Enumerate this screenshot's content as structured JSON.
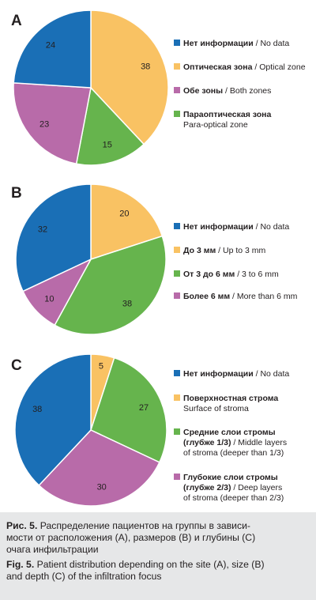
{
  "colors": {
    "blue": "#1a6fb6",
    "yellow": "#f9c263",
    "purple": "#b86ba9",
    "green": "#66b44d"
  },
  "chart_data": [
    {
      "type": "pie",
      "panel": "A",
      "slices": [
        {
          "label_ru": "Нет информации",
          "label_en": "No data",
          "value": 24,
          "color": "#1a6fb6"
        },
        {
          "label_ru": "Оптическая зона",
          "label_en": "Optical zone",
          "value": 38,
          "color": "#f9c263"
        },
        {
          "label_ru": "Обе зоны",
          "label_en": "Both zones",
          "value": 23,
          "color": "#b86ba9"
        },
        {
          "label_ru": "Параоптическая зона",
          "label_en": "Para-optical zone",
          "value": 15,
          "color": "#66b44d"
        }
      ],
      "clockwise_order": [
        "Оптическая зона",
        "Параоптическая зона",
        "Обе зоны",
        "Нет информации"
      ],
      "legend_position": "right"
    },
    {
      "type": "pie",
      "panel": "B",
      "slices": [
        {
          "label_ru": "Нет информации",
          "label_en": "No data",
          "value": 32,
          "color": "#1a6fb6"
        },
        {
          "label_ru": "До 3 мм",
          "label_en": "Up to 3 mm",
          "value": 20,
          "color": "#f9c263"
        },
        {
          "label_ru": "От 3 до 6 мм",
          "label_en": "3 to 6 mm",
          "value": 38,
          "color": "#66b44d"
        },
        {
          "label_ru": "Более 6 мм",
          "label_en": "More than 6 mm",
          "value": 10,
          "color": "#b86ba9"
        }
      ],
      "clockwise_order": [
        "До 3 мм",
        "От 3 до 6 мм",
        "Более 6 мм",
        "Нет информации"
      ],
      "legend_position": "right"
    },
    {
      "type": "pie",
      "panel": "C",
      "slices": [
        {
          "label_ru": "Нет информации",
          "label_en": "No data",
          "value": 38,
          "color": "#1a6fb6"
        },
        {
          "label_ru": "Поверхностная строма",
          "label_en": "Surface of stroma",
          "value": 5,
          "color": "#f9c263"
        },
        {
          "label_ru": "Средние слои стромы (глубже 1/3)",
          "label_en": "Middle layers of stroma (deeper than 1/3)",
          "value": 27,
          "color": "#66b44d"
        },
        {
          "label_ru": "Глубокие слои стромы (глубже 2/3)",
          "label_en": "Deep layers of stroma (deeper than 2/3)",
          "value": 30,
          "color": "#b86ba9"
        }
      ],
      "clockwise_order": [
        "Поверхностная строма",
        "Средние слои стромы (глубже 1/3)",
        "Глубокие слои стромы (глубже 2/3)",
        "Нет информации"
      ],
      "legend_position": "right"
    }
  ],
  "legend_text": {
    "A": [
      {
        "bold": "Нет информации",
        "rest": " / No data"
      },
      {
        "bold": "Оптическая зона",
        "rest": " / Optical zone"
      },
      {
        "bold": "Обе зоны",
        "rest": " / Both zones"
      },
      {
        "bold": "Параоптическая зона",
        "line2": "Para-optical zone"
      }
    ],
    "B": [
      {
        "bold": "Нет информации",
        "rest": " / No data"
      },
      {
        "bold": "До 3 мм",
        "rest": " / Up to 3 mm"
      },
      {
        "bold": "От 3 до 6 мм",
        "rest": " / 3 to 6 mm"
      },
      {
        "bold": "Более 6 мм",
        "rest": " / More than 6 mm"
      }
    ],
    "C": [
      {
        "bold": "Нет информации",
        "rest": " / No data"
      },
      {
        "bold": "Поверхностная строма",
        "line2": "Surface of stroma"
      },
      {
        "bold": "Средние слои стромы",
        "bold2": "(глубже 1/3)",
        "rest2": " / Middle layers",
        "line3": "of stroma (deeper than 1/3)"
      },
      {
        "bold": "Глубокие слои стромы",
        "bold2": "(глубже 2/3)",
        "rest2": " / Deep layers",
        "line3": "of stroma (deeper than 2/3)"
      }
    ]
  },
  "caption": {
    "ru_label": "Рис. 5.",
    "ru_line1": " Распределение пациентов на группы в зависи-",
    "ru_line2": "мости от расположения (А), размеров (В) и глубины (С)",
    "ru_line3": "очага инфильтрации",
    "en_label": "Fig. 5.",
    "en_line1": " Patient distribution depending on the site (A), size (B)",
    "en_line2": "and depth (C) of the infiltration focus"
  }
}
